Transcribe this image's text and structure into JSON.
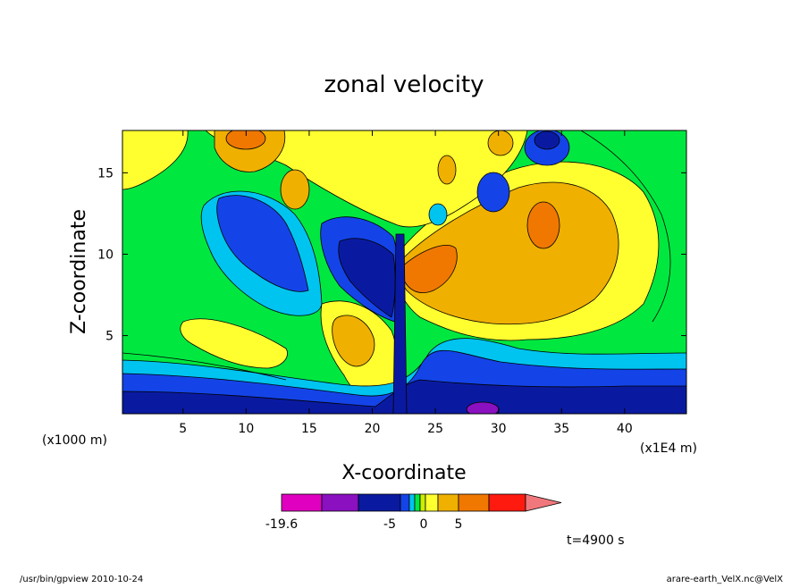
{
  "chart_data": {
    "type": "heatmap",
    "title": "zonal velocity",
    "xlabel": "X-coordinate",
    "ylabel": "Z-coordinate",
    "x_unit": "(x1E4 m)",
    "y_unit": "(x1000 m)",
    "xlim": [
      0.2,
      44.9
    ],
    "ylim": [
      0.2,
      17.6
    ],
    "x_ticks": [
      5,
      10,
      15,
      20,
      25,
      30,
      35,
      40
    ],
    "y_ticks": [
      5,
      10,
      15
    ],
    "colorbar": {
      "levels": [
        -19.6,
        -15,
        -10,
        -5,
        -3,
        -2,
        -1,
        0,
        1,
        2,
        5,
        7.5,
        10
      ],
      "tick_labels": [
        {
          "value": -19.6,
          "text": "-19.6"
        },
        {
          "value": -5,
          "text": "-5"
        },
        {
          "value": 0,
          "text": "0"
        },
        {
          "value": 5,
          "text": "5"
        }
      ],
      "colors": [
        "#e000c0",
        "#8a10c0",
        "#0a1aa0",
        "#1444e8",
        "#00c4f0",
        "#00e840",
        "#c8f000",
        "#ffff30",
        "#f0b000",
        "#f07800",
        "#ff1a10",
        "#f0787c"
      ]
    }
  },
  "annotations": {
    "time": "t=4900 s",
    "footer_left": "/usr/bin/gpview   2010-10-24",
    "footer_right": "arare-earth_VelX.nc@VelX"
  }
}
